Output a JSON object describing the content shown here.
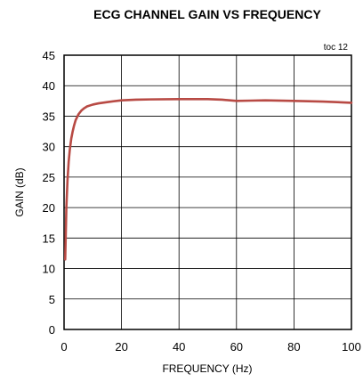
{
  "chart_data": {
    "type": "line",
    "title": "ECG CHANNEL GAIN VS FREQUENCY",
    "note": "toc 12",
    "xlabel": "FREQUENCY (Hz)",
    "ylabel": "GAIN (dB)",
    "xlim": [
      0,
      100
    ],
    "ylim": [
      0,
      45
    ],
    "xticks": [
      0,
      20,
      40,
      60,
      80,
      100
    ],
    "yticks": [
      0,
      5,
      10,
      15,
      20,
      25,
      30,
      35,
      40,
      45
    ],
    "grid": true,
    "line_color": "#b84a44",
    "series": [
      {
        "x": [
          0.4,
          0.8,
          1.2,
          1.6,
          2,
          2.5,
          3,
          3.5,
          4,
          5,
          6,
          7,
          8,
          10,
          12,
          15,
          20,
          25,
          30,
          40,
          50,
          55,
          60,
          65,
          70,
          80,
          90,
          100
        ],
        "y": [
          11.5,
          20,
          24.5,
          27.5,
          29.5,
          31.3,
          32.5,
          33.5,
          34.3,
          35.3,
          35.9,
          36.3,
          36.6,
          36.9,
          37.1,
          37.3,
          37.6,
          37.7,
          37.75,
          37.8,
          37.8,
          37.7,
          37.5,
          37.55,
          37.6,
          37.5,
          37.4,
          37.2
        ]
      }
    ]
  }
}
